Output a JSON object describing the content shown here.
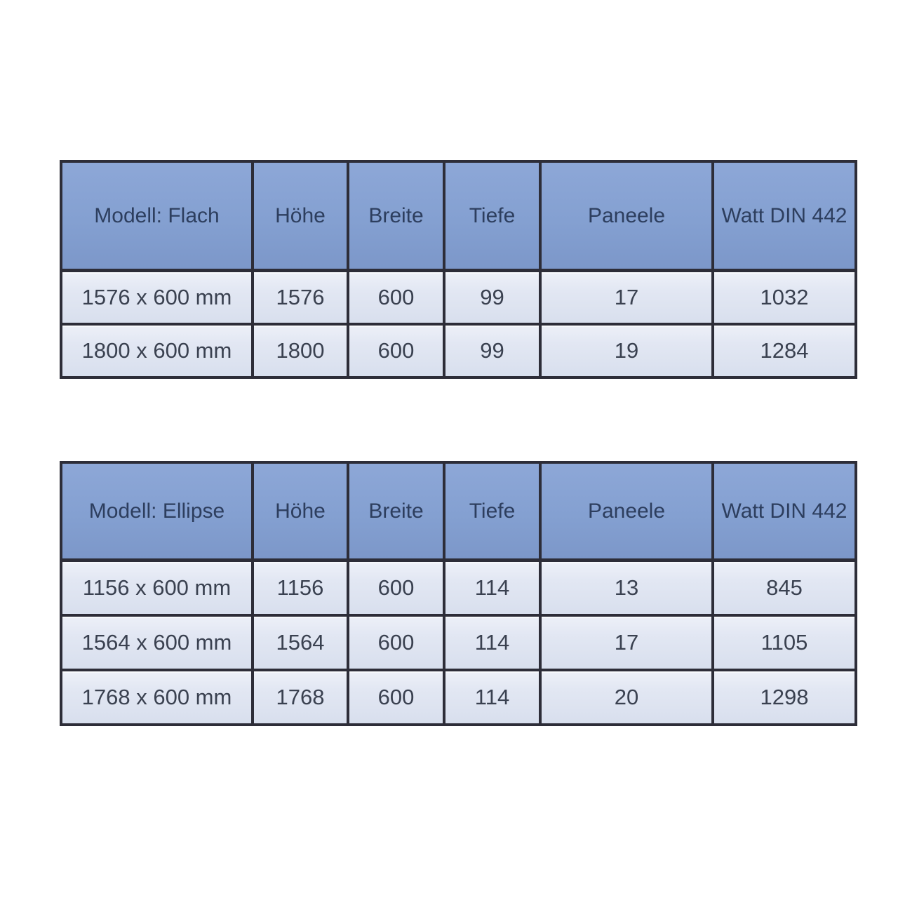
{
  "tables": [
    {
      "name": "flach",
      "header": [
        "Modell: Flach",
        "Höhe",
        "Breite",
        "Tiefe",
        "Paneele",
        "Watt DIN 442"
      ],
      "rows": [
        [
          "1576 x 600 mm",
          "1576",
          "600",
          "99",
          "17",
          "1032"
        ],
        [
          "1800 x 600 mm",
          "1800",
          "600",
          "99",
          "19",
          "1284"
        ]
      ]
    },
    {
      "name": "ellipse",
      "header": [
        "Modell: Ellipse",
        "Höhe",
        "Breite",
        "Tiefe",
        "Paneele",
        "Watt DIN 442"
      ],
      "rows": [
        [
          "1156 x 600 mm",
          "1156",
          "600",
          "114",
          "13",
          "845"
        ],
        [
          "1564 x 600 mm",
          "1564",
          "600",
          "114",
          "17",
          "1105"
        ],
        [
          "1768 x 600 mm",
          "1768",
          "600",
          "114",
          "20",
          "1298"
        ]
      ]
    }
  ],
  "colors": {
    "page_bg": "#ffffff",
    "header_bg": "#84a0d1",
    "row_bg": "#dde3f0",
    "border": "#2d2d38",
    "header_text": "#2d3e5e",
    "cell_text": "#3a4150"
  }
}
